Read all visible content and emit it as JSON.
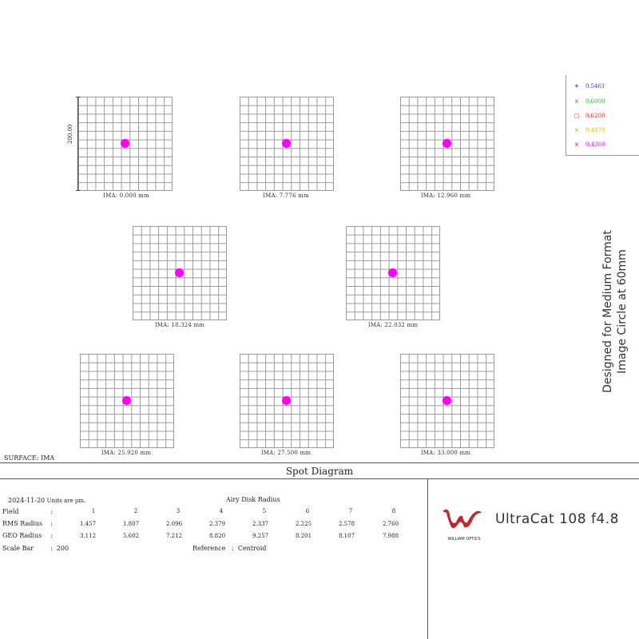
{
  "spot_diagrams": [
    {
      "ima": "IMA: 0.000 mm"
    },
    {
      "ima": "IMA: 7.776 mm"
    },
    {
      "ima": "IMA: 12.960 mm"
    },
    {
      "ima": "IMA: 18.324 mm"
    },
    {
      "ima": "IMA: 22.032 mm"
    },
    {
      "ima": "IMA: 25.920 mm"
    },
    {
      "ima": "IMA: 27.500 mm"
    },
    {
      "ima": "IMA: 33.000 mm"
    }
  ],
  "scale_label": "200.00",
  "legend": [
    {
      "marker": "+",
      "wavelength": "0.5461",
      "color": "#3333ff"
    },
    {
      "marker": "×",
      "wavelength": "0.6000",
      "color": "#22bb22"
    },
    {
      "marker": "□",
      "wavelength": "0.6200",
      "color": "#ff2020"
    },
    {
      "marker": "×",
      "wavelength": "0.4970",
      "color": "#c8c800"
    },
    {
      "marker": "×",
      "wavelength": "0.4360",
      "color": "#ff00ff"
    }
  ],
  "side_note": {
    "line1": "Designed for Medium Format",
    "line2": "Image Circle at 60mm"
  },
  "surface": "SURFACE: IMA",
  "title": "Spot Diagram",
  "info": {
    "date": "2024-11-20",
    "units": "Units are µm.",
    "airy": "Airy Disk Radius",
    "field_label": "Field",
    "rms_label": "RMS Radius",
    "geo_label": "GEO Radius",
    "scale_label": "Scale Bar",
    "colon": ":",
    "scale_value": "200",
    "reference_label": "Reference",
    "reference_value": "Centroid",
    "fields": [
      "1",
      "2",
      "3",
      "4",
      "5",
      "6",
      "7",
      "8"
    ],
    "rms": [
      "1.457",
      "1.807",
      "2.096",
      "2.379",
      "2.337",
      "2.225",
      "2.578",
      "2.760"
    ],
    "geo": [
      "3.112",
      "5.602",
      "7.212",
      "8.820",
      "9.257",
      "8.201",
      "8.107",
      "7.988"
    ]
  },
  "logo_text": "WILLIAM OPTICS",
  "product": "UltraCat 108 f4.8",
  "colors": {
    "spot": "#ff00ff",
    "grid": "#9a9a9a"
  }
}
